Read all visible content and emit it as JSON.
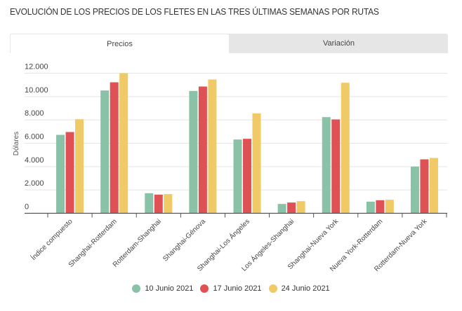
{
  "title": "EVOLUCIÓN DE LOS PRECIOS DE LOS FLETES EN LAS TRES ÚLTIMAS SEMANAS POR RUTAS",
  "tabs": [
    {
      "label": "Precios",
      "active": true
    },
    {
      "label": "Variación",
      "active": false
    }
  ],
  "chart_data": {
    "type": "bar",
    "title": "",
    "xlabel": "",
    "ylabel": "Dólares",
    "ylim": [
      0,
      12000
    ],
    "yticks": [
      "0",
      "2.000",
      "4.000",
      "6.000",
      "8.000",
      "10.000",
      "12.000"
    ],
    "ytick_values": [
      0,
      2000,
      4000,
      6000,
      8000,
      10000,
      12000
    ],
    "grid": true,
    "legend_position": "bottom",
    "categories": [
      "Índice compuesto",
      "Shanghai-Rotterdam",
      "Rotterdam-Shanghai",
      "Shanghai-Génova",
      "Shanghai-Los Ángeles",
      "Los Ángeles-Shanghai",
      "Shanghai-Nueva York",
      "Nueva York-Rotterdam",
      "Rotterdam-Nueva York"
    ],
    "series": [
      {
        "name": "10 Junio 2021",
        "color": "#89c2a6",
        "values": [
          6720,
          10520,
          1720,
          10480,
          6320,
          800,
          8240,
          1000,
          4000
        ]
      },
      {
        "name": "17 Junio 2021",
        "color": "#de5256",
        "values": [
          6960,
          11220,
          1600,
          10860,
          6380,
          920,
          8040,
          1120,
          4620
        ]
      },
      {
        "name": "24 Junio 2021",
        "color": "#efca66",
        "values": [
          8060,
          12000,
          1640,
          11460,
          8560,
          1040,
          11180,
          1160,
          4740
        ]
      }
    ]
  }
}
